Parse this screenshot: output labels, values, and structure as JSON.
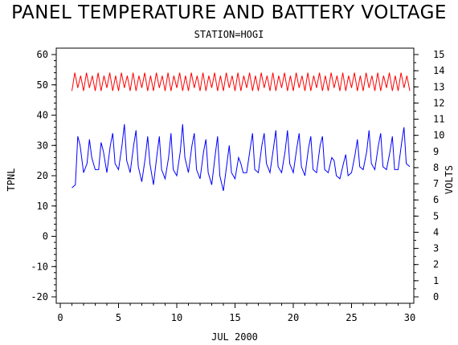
{
  "chart_data": {
    "type": "line",
    "title": "PANEL TEMPERATURE AND BATTERY VOLTAGE",
    "subtitle": "STATION=HOGI",
    "xlabel": "JUL 2000",
    "ylabel_left": "TPNL",
    "ylabel_right": "VOLTS",
    "xlim": [
      0,
      30
    ],
    "ylim_left": [
      -20,
      60
    ],
    "ylim_right": [
      0,
      15
    ],
    "x_ticks": [
      "0",
      "5",
      "10",
      "15",
      "20",
      "25",
      "30"
    ],
    "y_left_ticks": [
      "-20",
      "-10",
      "0",
      "10",
      "20",
      "30",
      "40",
      "50",
      "60"
    ],
    "y_right_ticks": [
      "0",
      "1",
      "2",
      "3",
      "4",
      "5",
      "6",
      "7",
      "8",
      "9",
      "10",
      "11",
      "12",
      "13",
      "14",
      "15"
    ],
    "grid": false,
    "series": [
      {
        "color": "#0000ff",
        "axis": "left",
        "x": [
          1.0,
          1.3,
          1.5,
          1.7,
          2.0,
          2.3,
          2.5,
          2.7,
          3.0,
          3.3,
          3.5,
          3.7,
          4.0,
          4.3,
          4.5,
          4.7,
          5.0,
          5.3,
          5.5,
          5.7,
          6.0,
          6.3,
          6.5,
          6.7,
          7.0,
          7.3,
          7.5,
          7.7,
          8.0,
          8.3,
          8.5,
          8.7,
          9.0,
          9.3,
          9.5,
          9.7,
          10.0,
          10.3,
          10.5,
          10.7,
          11.0,
          11.3,
          11.5,
          11.7,
          12.0,
          12.3,
          12.5,
          12.7,
          13.0,
          13.3,
          13.5,
          13.7,
          14.0,
          14.3,
          14.5,
          14.7,
          15.0,
          15.3,
          15.5,
          15.7,
          16.0,
          16.3,
          16.5,
          16.7,
          17.0,
          17.3,
          17.5,
          17.7,
          18.0,
          18.3,
          18.5,
          18.7,
          19.0,
          19.3,
          19.5,
          19.7,
          20.0,
          20.3,
          20.5,
          20.7,
          21.0,
          21.3,
          21.5,
          21.7,
          22.0,
          22.3,
          22.5,
          22.7,
          23.0,
          23.3,
          23.5,
          23.7,
          24.0,
          24.3,
          24.5,
          24.7,
          25.0,
          25.3,
          25.5,
          25.7,
          26.0,
          26.3,
          26.5,
          26.7,
          27.0,
          27.3,
          27.5,
          27.7,
          28.0,
          28.3,
          28.5,
          28.7,
          29.0,
          29.3,
          29.5,
          29.7,
          30.0
        ],
        "values": [
          16,
          17,
          33,
          30,
          21,
          24,
          32,
          26,
          22,
          22,
          31,
          28,
          21,
          30,
          34,
          24,
          22,
          30,
          37,
          25,
          21,
          30,
          35,
          23,
          18,
          26,
          33,
          24,
          17,
          27,
          33,
          22,
          19,
          26,
          34,
          22,
          20,
          28,
          37,
          26,
          21,
          30,
          34,
          22,
          19,
          28,
          32,
          21,
          17,
          27,
          33,
          20,
          15,
          24,
          30,
          21,
          19,
          26,
          24,
          21,
          21,
          29,
          34,
          22,
          21,
          30,
          34,
          24,
          21,
          29,
          35,
          23,
          21,
          28,
          35,
          24,
          21,
          29,
          34,
          23,
          20,
          29,
          33,
          22,
          21,
          30,
          33,
          22,
          21,
          26,
          25,
          20,
          19,
          24,
          27,
          20,
          21,
          27,
          32,
          23,
          22,
          28,
          35,
          24,
          22,
          30,
          34,
          23,
          22,
          28,
          33,
          22,
          22,
          31,
          36,
          24,
          23
        ]
      },
      {
        "color": "#ff0000",
        "axis": "left",
        "x": [
          1.0,
          1.25,
          1.5,
          1.75,
          2.0,
          2.25,
          2.5,
          2.75,
          3.0,
          3.25,
          3.5,
          3.75,
          4.0,
          4.25,
          4.5,
          4.75,
          5.0,
          5.25,
          5.5,
          5.75,
          6.0,
          6.25,
          6.5,
          6.75,
          7.0,
          7.25,
          7.5,
          7.75,
          8.0,
          8.25,
          8.5,
          8.75,
          9.0,
          9.25,
          9.5,
          9.75,
          10.0,
          10.25,
          10.5,
          10.75,
          11.0,
          11.25,
          11.5,
          11.75,
          12.0,
          12.25,
          12.5,
          12.75,
          13.0,
          13.25,
          13.5,
          13.75,
          14.0,
          14.25,
          14.5,
          14.75,
          15.0,
          15.25,
          15.5,
          15.75,
          16.0,
          16.25,
          16.5,
          16.75,
          17.0,
          17.25,
          17.5,
          17.75,
          18.0,
          18.25,
          18.5,
          18.75,
          19.0,
          19.25,
          19.5,
          19.75,
          20.0,
          20.25,
          20.5,
          20.75,
          21.0,
          21.25,
          21.5,
          21.75,
          22.0,
          22.25,
          22.5,
          22.75,
          23.0,
          23.25,
          23.5,
          23.75,
          24.0,
          24.25,
          24.5,
          24.75,
          25.0,
          25.25,
          25.5,
          25.75,
          26.0,
          26.25,
          26.5,
          26.75,
          27.0,
          27.25,
          27.5,
          27.75,
          28.0,
          28.25,
          28.5,
          28.75,
          29.0,
          29.25,
          29.5,
          29.75,
          30.0
        ],
        "values": [
          48,
          54,
          49,
          53,
          48,
          54,
          49,
          53,
          48,
          54,
          48,
          53,
          49,
          54,
          48,
          53,
          48,
          54,
          49,
          53,
          48,
          54,
          48,
          53,
          49,
          54,
          48,
          53,
          48,
          54,
          49,
          53,
          48,
          54,
          48,
          53,
          49,
          54,
          48,
          53,
          48,
          54,
          49,
          53,
          48,
          54,
          48,
          53,
          49,
          54,
          48,
          53,
          48,
          54,
          49,
          53,
          48,
          54,
          48,
          53,
          49,
          54,
          48,
          53,
          48,
          54,
          49,
          53,
          48,
          54,
          48,
          53,
          49,
          54,
          48,
          53,
          48,
          54,
          49,
          53,
          48,
          54,
          48,
          53,
          49,
          54,
          48,
          53,
          48,
          54,
          49,
          53,
          48,
          54,
          48,
          53,
          49,
          54,
          48,
          53,
          48,
          54,
          49,
          53,
          48,
          54,
          48,
          53,
          49,
          54,
          48,
          53,
          48,
          54,
          49,
          53,
          48
        ]
      }
    ]
  }
}
